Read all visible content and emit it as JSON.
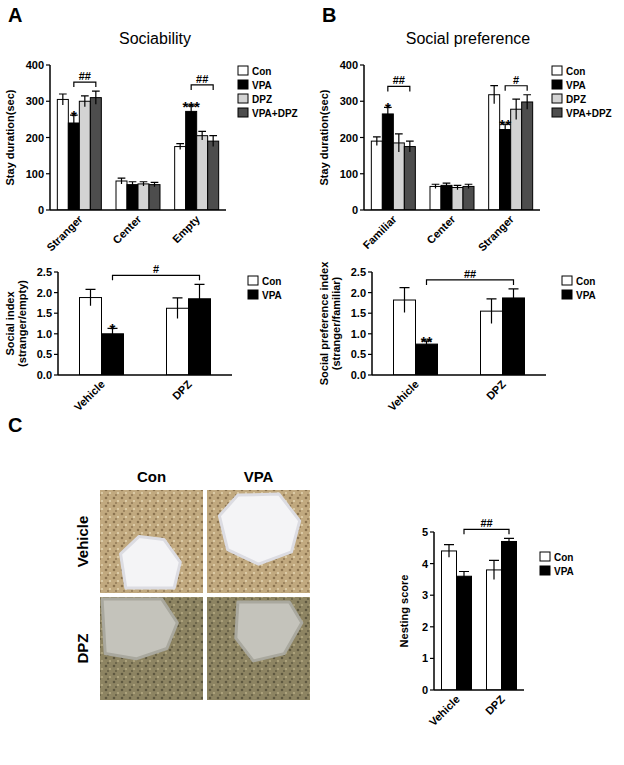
{
  "panels": [
    "A",
    "B",
    "C"
  ],
  "photo": {
    "columns": [
      "Con",
      "VPA"
    ],
    "rows": [
      "Vehicle",
      "DPZ"
    ]
  },
  "chart_data": [
    {
      "type": "bar",
      "title": "Sociability",
      "y_label": [
        "Stay duration(sec)"
      ],
      "categories": [
        "Stranger",
        "Center",
        "Empty"
      ],
      "series": [
        {
          "name": "Con",
          "color": "#ffffff",
          "values": [
            305,
            80,
            175
          ],
          "errors": [
            15,
            8,
            8
          ]
        },
        {
          "name": "VPA",
          "color": "#000000",
          "values": [
            240,
            70,
            272
          ],
          "errors": [
            22,
            8,
            15
          ]
        },
        {
          "name": "DPZ",
          "color": "#d3d3d3",
          "values": [
            300,
            72,
            205
          ],
          "errors": [
            15,
            6,
            12
          ]
        },
        {
          "name": "VPA+DPZ",
          "color": "#4d4d4d",
          "values": [
            310,
            70,
            190
          ],
          "errors": [
            18,
            6,
            15
          ]
        }
      ],
      "ylim": [
        0,
        400
      ],
      "yticks": [
        0,
        100,
        200,
        300,
        400
      ],
      "grid": false,
      "legend": "right",
      "annotations": [
        {
          "text": "*",
          "series": "VPA",
          "category": "Stranger"
        },
        {
          "text": "##",
          "from": {
            "series": "VPA",
            "category": "Stranger"
          },
          "to": {
            "series": "VPA+DPZ",
            "category": "Stranger"
          }
        },
        {
          "text": "***",
          "series": "VPA",
          "category": "Empty"
        },
        {
          "text": "##",
          "from": {
            "series": "VPA",
            "category": "Empty"
          },
          "to": {
            "series": "VPA+DPZ",
            "category": "Empty"
          }
        }
      ]
    },
    {
      "type": "bar",
      "y_label": [
        "Social index",
        "(stranger/empty)"
      ],
      "categories": [
        "Vehicle",
        "DPZ"
      ],
      "series": [
        {
          "name": "Con",
          "color": "#ffffff",
          "values": [
            1.88,
            1.62
          ],
          "errors": [
            0.2,
            0.25
          ]
        },
        {
          "name": "VPA",
          "color": "#000000",
          "values": [
            1.0,
            1.85
          ],
          "errors": [
            0.13,
            0.35
          ]
        }
      ],
      "ylim": [
        0,
        2.5
      ],
      "yticks": [
        {
          "value": 0,
          "label": "0.0"
        },
        0.5,
        {
          "value": 1,
          "label": "1.0"
        },
        1.5,
        {
          "value": 2,
          "label": "2.0"
        },
        2.5
      ],
      "grid": false,
      "legend": "right",
      "annotations": [
        {
          "text": "*",
          "series": "VPA",
          "category": "Vehicle"
        },
        {
          "text": "#",
          "from": {
            "series": "VPA",
            "category": "Vehicle"
          },
          "to": {
            "series": "VPA",
            "category": "DPZ"
          }
        }
      ]
    },
    {
      "type": "bar",
      "title": "Social preference",
      "y_label": [
        "Stay duration(sec)"
      ],
      "categories": [
        "Familiar",
        "Center",
        "Stranger"
      ],
      "series": [
        {
          "name": "Con",
          "color": "#ffffff",
          "values": [
            190,
            65,
            318
          ],
          "errors": [
            12,
            6,
            25
          ]
        },
        {
          "name": "VPA",
          "color": "#000000",
          "values": [
            265,
            68,
            222
          ],
          "errors": [
            18,
            6,
            15
          ]
        },
        {
          "name": "DPZ",
          "color": "#d3d3d3",
          "values": [
            185,
            62,
            278
          ],
          "errors": [
            25,
            6,
            28
          ]
        },
        {
          "name": "VPA+DPZ",
          "color": "#4d4d4d",
          "values": [
            175,
            65,
            298
          ],
          "errors": [
            15,
            6,
            20
          ]
        }
      ],
      "ylim": [
        0,
        400
      ],
      "yticks": [
        0,
        100,
        200,
        300,
        400
      ],
      "grid": false,
      "legend": "right",
      "annotations": [
        {
          "text": "*",
          "series": "VPA",
          "category": "Familiar"
        },
        {
          "text": "##",
          "from": {
            "series": "VPA",
            "category": "Familiar"
          },
          "to": {
            "series": "VPA+DPZ",
            "category": "Familiar"
          }
        },
        {
          "text": "**",
          "series": "VPA",
          "category": "Stranger"
        },
        {
          "text": "#",
          "from": {
            "series": "VPA",
            "category": "Stranger"
          },
          "to": {
            "series": "VPA+DPZ",
            "category": "Stranger"
          }
        }
      ]
    },
    {
      "type": "bar",
      "y_label": [
        "Social preference index",
        "(stranger/familiar)"
      ],
      "categories": [
        "Vehicle",
        "DPZ"
      ],
      "series": [
        {
          "name": "Con",
          "color": "#ffffff",
          "values": [
            1.82,
            1.55
          ],
          "errors": [
            0.3,
            0.3
          ]
        },
        {
          "name": "VPA",
          "color": "#000000",
          "values": [
            0.75,
            1.87
          ],
          "errors": [
            0.08,
            0.22
          ]
        }
      ],
      "ylim": [
        0,
        2.5
      ],
      "yticks": [
        {
          "value": 0,
          "label": "0.0"
        },
        0.5,
        {
          "value": 1,
          "label": "1.0"
        },
        1.5,
        {
          "value": 2,
          "label": "2.0"
        },
        2.5
      ],
      "grid": false,
      "legend": "right",
      "annotations": [
        {
          "text": "**",
          "series": "VPA",
          "category": "Vehicle"
        },
        {
          "text": "##",
          "from": {
            "series": "VPA",
            "category": "Vehicle"
          },
          "to": {
            "series": "VPA",
            "category": "DPZ"
          }
        }
      ]
    },
    {
      "type": "bar",
      "y_label": [
        "Nesting score"
      ],
      "categories": [
        "Vehicle",
        "DPZ"
      ],
      "series": [
        {
          "name": "Con",
          "color": "#ffffff",
          "values": [
            4.4,
            3.8
          ],
          "errors": [
            0.2,
            0.3
          ]
        },
        {
          "name": "VPA",
          "color": "#000000",
          "values": [
            3.6,
            4.7
          ],
          "errors": [
            0.15,
            0.1
          ]
        }
      ],
      "ylim": [
        0,
        5
      ],
      "yticks": [
        0,
        1,
        2,
        3,
        4,
        5
      ],
      "grid": false,
      "legend": "right",
      "annotations": [
        {
          "text": "##",
          "from": {
            "series": "VPA",
            "category": "Vehicle"
          },
          "to": {
            "series": "VPA",
            "category": "DPZ"
          }
        }
      ]
    }
  ]
}
